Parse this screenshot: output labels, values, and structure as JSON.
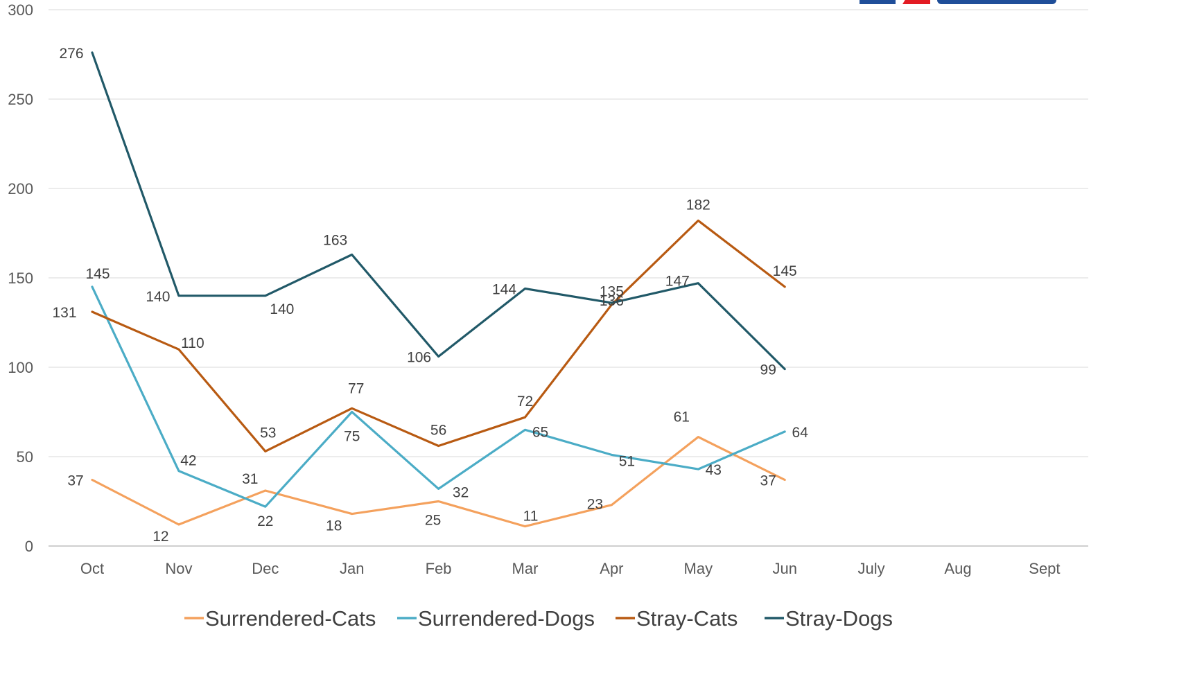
{
  "chart_data": {
    "type": "line",
    "title": "",
    "xlabel": "",
    "ylabel": "",
    "ylim": [
      0,
      300
    ],
    "y_ticks": [
      0,
      50,
      100,
      150,
      200,
      250,
      300
    ],
    "grid": true,
    "legend_position": "bottom",
    "categories": [
      "Oct",
      "Nov",
      "Dec",
      "Jan",
      "Feb",
      "Mar",
      "Apr",
      "May",
      "Jun",
      "July",
      "Aug",
      "Sept"
    ],
    "series": [
      {
        "name": "Surrendered-Cats",
        "color": "#f4a15d",
        "values": [
          37,
          12,
          31,
          18,
          25,
          11,
          23,
          61,
          37,
          null,
          null,
          null
        ]
      },
      {
        "name": "Surrendered-Dogs",
        "color": "#4bacc6",
        "values": [
          145,
          42,
          22,
          75,
          32,
          65,
          51,
          43,
          64,
          null,
          null,
          null
        ]
      },
      {
        "name": "Stray-Cats",
        "color": "#b85a12",
        "values": [
          131,
          110,
          53,
          77,
          56,
          72,
          135,
          182,
          145,
          null,
          null,
          null
        ]
      },
      {
        "name": "Stray-Dogs",
        "color": "#215968",
        "values": [
          276,
          140,
          140,
          163,
          106,
          144,
          136,
          147,
          99,
          null,
          null,
          null
        ]
      }
    ]
  },
  "logo": {
    "colors": [
      "#1f4e99",
      "#e31b23",
      "#1f4e99"
    ]
  }
}
